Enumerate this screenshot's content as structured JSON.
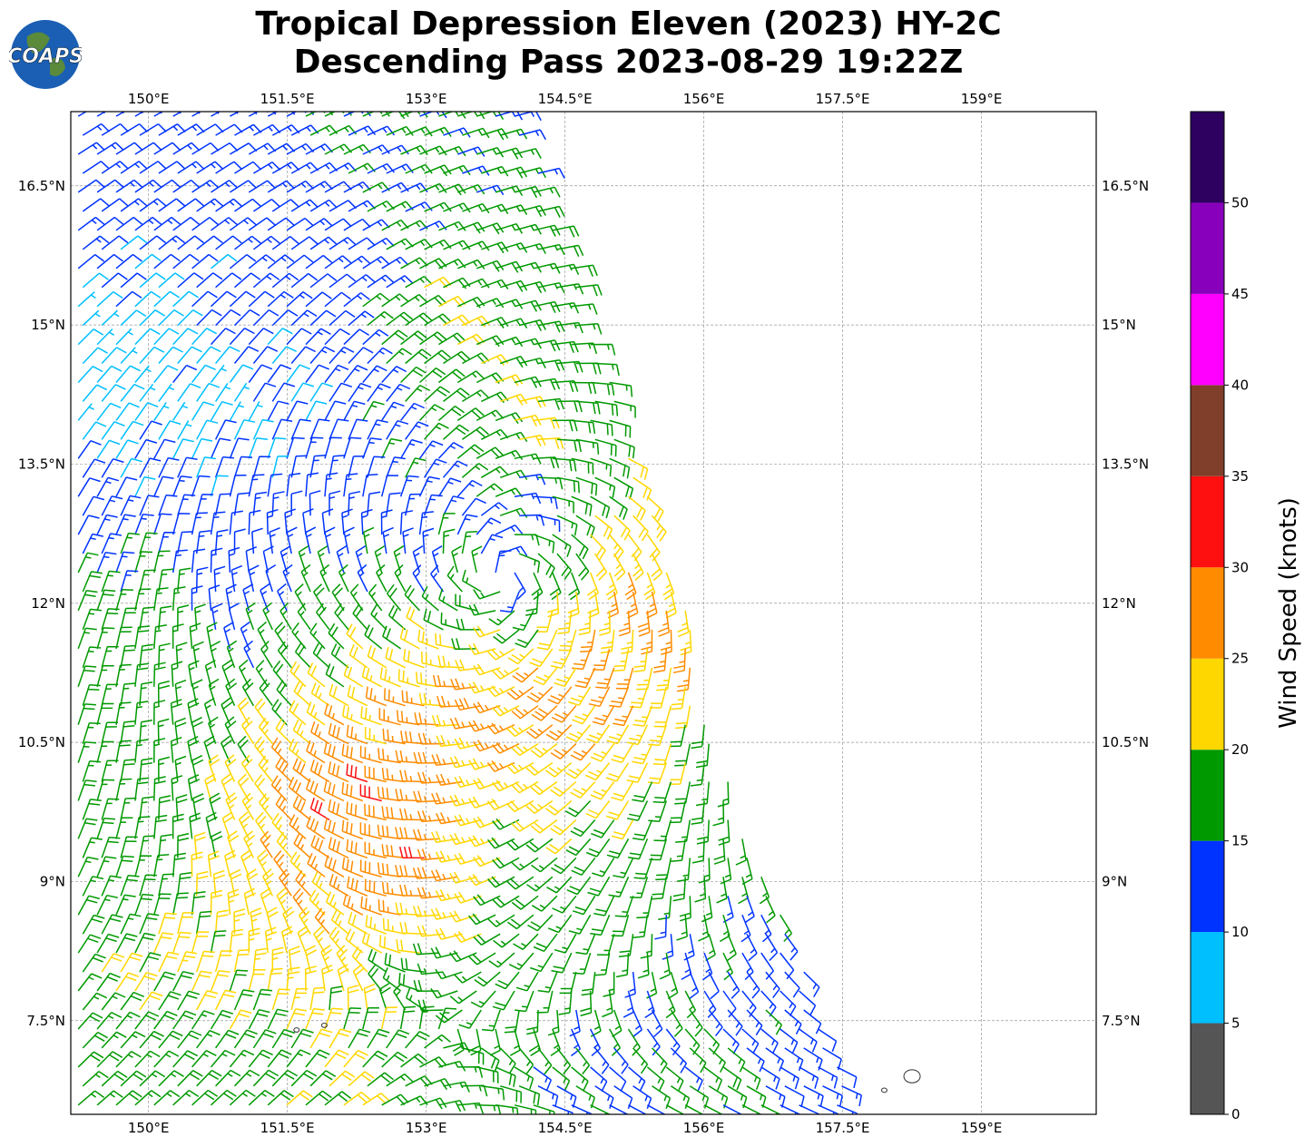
{
  "title_line1": "Tropical Depression Eleven (2023) HY-2C",
  "title_line2": "Descending Pass 2023-08-29 19:22Z",
  "logo_text": "COAPS",
  "chart_data": {
    "type": "wind-barb-map",
    "lon_range": [
      149.16,
      160.24
    ],
    "lat_range": [
      6.49,
      17.3
    ],
    "lon_ticks": [
      150,
      151.5,
      153,
      154.5,
      156,
      157.5,
      159
    ],
    "lon_tick_labels": [
      "150°E",
      "151.5°E",
      "153°E",
      "154.5°E",
      "156°E",
      "157.5°E",
      "159°E"
    ],
    "lat_ticks": [
      16.5,
      15,
      13.5,
      12,
      10.5,
      9,
      7.5
    ],
    "lat_tick_labels": [
      "16.5°N",
      "15°N",
      "13.5°N",
      "12°N",
      "10.5°N",
      "9°N",
      "7.5°N"
    ],
    "grid": true,
    "swath_right_edge": [
      [
        17.3,
        154.0
      ],
      [
        15,
        154.8
      ],
      [
        12,
        155.8
      ],
      [
        10.5,
        156.1
      ],
      [
        9,
        156.7
      ],
      [
        7.5,
        157.3
      ],
      [
        6.49,
        157.6
      ]
    ],
    "circulation_center": [
      153.8,
      12.3
    ],
    "speed_grid_lats": [
      17,
      16,
      15,
      14,
      13,
      12,
      11,
      10,
      9,
      8,
      7
    ],
    "speed_grid_lons": [
      149,
      150,
      151,
      152,
      153,
      154,
      155,
      156,
      157
    ],
    "speed_grid_knots": [
      [
        12,
        12,
        13,
        16,
        16,
        16,
        16,
        16,
        16
      ],
      [
        12,
        12,
        12,
        12,
        16,
        17,
        17,
        17,
        17
      ],
      [
        8,
        8,
        12,
        12,
        21,
        17,
        17,
        17,
        17
      ],
      [
        8,
        8,
        8,
        12,
        17,
        21,
        17,
        17,
        17
      ],
      [
        12,
        12,
        12,
        12,
        13,
        14,
        21,
        22,
        22
      ],
      [
        17,
        17,
        12,
        17,
        16,
        16,
        26,
        27,
        22
      ],
      [
        17,
        17,
        17,
        21,
        26,
        27,
        26,
        22,
        21
      ],
      [
        17,
        17,
        21,
        31,
        27,
        22,
        22,
        17,
        17
      ],
      [
        17,
        17,
        22,
        27,
        30,
        17,
        17,
        17,
        14
      ],
      [
        17,
        21,
        22,
        22,
        17,
        17,
        17,
        13,
        13
      ],
      [
        17,
        17,
        17,
        21,
        17,
        17,
        13,
        17,
        13
      ]
    ],
    "colorbar": {
      "label": "Wind Speed (knots)",
      "bounds": [
        0,
        5,
        10,
        15,
        20,
        25,
        30,
        35,
        40,
        45,
        50,
        55
      ],
      "tick_labels": [
        "0",
        "5",
        "10",
        "15",
        "20",
        "25",
        "30",
        "35",
        "40",
        "45",
        "50"
      ],
      "colors": [
        "#555555",
        "#00bfff",
        "#0033ff",
        "#009900",
        "#ffd700",
        "#ff8c00",
        "#ff1010",
        "#7f3f2a",
        "#ff00ff",
        "#8800bb",
        "#2e0060"
      ]
    },
    "islands": [
      [
        151.6,
        7.4
      ],
      [
        151.9,
        7.45
      ],
      [
        158.25,
        6.9
      ],
      [
        157.95,
        6.75
      ]
    ]
  }
}
